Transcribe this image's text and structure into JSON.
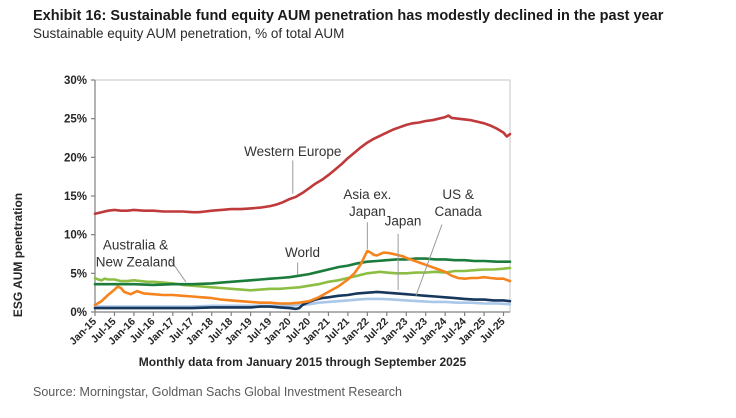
{
  "header": {
    "title": "Exhibit 16: Sustainable fund equity AUM penetration has modestly declined in the past year",
    "subtitle": "Sustainable equity AUM penetration, % of total AUM"
  },
  "source": "Source: Morningstar, Goldman Sachs Global Investment Research",
  "colors": {
    "axis": "#808080",
    "plot_border": "#c6c6c6",
    "tick_text": "#262626",
    "annotation_text": "#333333",
    "leader_line": "#999999"
  },
  "chart_data": {
    "type": "line",
    "title": "Sustainable equity AUM penetration, % of total AUM",
    "ylabel": "ESG AUM penetration",
    "xlabel": "Monthly data from January 2015 through September 2025",
    "ylim": [
      0,
      30
    ],
    "yticks": [
      0,
      5,
      10,
      15,
      20,
      25,
      30
    ],
    "ytick_suffix": "%",
    "xticks": [
      "Jan-15",
      "Jul-15",
      "Jan-16",
      "Jul-16",
      "Jan-17",
      "Jul-17",
      "Jan-18",
      "Jul-18",
      "Jan-19",
      "Jul-19",
      "Jan-20",
      "Jul-20",
      "Jan-21",
      "Jul-21",
      "Jan-22",
      "Jul-22",
      "Jan-23",
      "Jul-23",
      "Jan-24",
      "Jul-24",
      "Jan-25",
      "Jul-25"
    ],
    "x_months_total": 128,
    "grid": false,
    "legend_position": "inline-annotations",
    "series": [
      {
        "name": "US & Canada",
        "color": "#a9c7e8",
        "points": [
          [
            0,
            0.7
          ],
          [
            6,
            0.7
          ],
          [
            12,
            0.7
          ],
          [
            18,
            0.7
          ],
          [
            24,
            0.7
          ],
          [
            30,
            0.7
          ],
          [
            36,
            0.8
          ],
          [
            42,
            0.8
          ],
          [
            48,
            0.8
          ],
          [
            54,
            0.8
          ],
          [
            60,
            0.8
          ],
          [
            63,
            0.9
          ],
          [
            66,
            1.0
          ],
          [
            69,
            1.2
          ],
          [
            72,
            1.3
          ],
          [
            75,
            1.4
          ],
          [
            78,
            1.5
          ],
          [
            81,
            1.6
          ],
          [
            84,
            1.7
          ],
          [
            88,
            1.7
          ],
          [
            92,
            1.6
          ],
          [
            96,
            1.5
          ],
          [
            100,
            1.4
          ],
          [
            104,
            1.3
          ],
          [
            108,
            1.3
          ],
          [
            112,
            1.2
          ],
          [
            116,
            1.2
          ],
          [
            120,
            1.1
          ],
          [
            124,
            1.1
          ],
          [
            128,
            1.0
          ]
        ]
      },
      {
        "name": "Japan",
        "color": "#17375d",
        "points": [
          [
            0,
            0.5
          ],
          [
            6,
            0.5
          ],
          [
            12,
            0.5
          ],
          [
            18,
            0.5
          ],
          [
            24,
            0.5
          ],
          [
            30,
            0.5
          ],
          [
            36,
            0.6
          ],
          [
            42,
            0.6
          ],
          [
            48,
            0.6
          ],
          [
            51,
            0.7
          ],
          [
            54,
            0.7
          ],
          [
            57,
            0.6
          ],
          [
            60,
            0.5
          ],
          [
            62,
            0.4
          ],
          [
            63,
            0.5
          ],
          [
            64,
            0.9
          ],
          [
            66,
            1.3
          ],
          [
            68,
            1.6
          ],
          [
            70,
            1.8
          ],
          [
            72,
            1.9
          ],
          [
            75,
            2.1
          ],
          [
            78,
            2.2
          ],
          [
            81,
            2.4
          ],
          [
            84,
            2.5
          ],
          [
            87,
            2.6
          ],
          [
            90,
            2.5
          ],
          [
            93,
            2.4
          ],
          [
            96,
            2.3
          ],
          [
            99,
            2.2
          ],
          [
            102,
            2.1
          ],
          [
            105,
            2.0
          ],
          [
            108,
            1.9
          ],
          [
            111,
            1.8
          ],
          [
            114,
            1.7
          ],
          [
            117,
            1.6
          ],
          [
            120,
            1.6
          ],
          [
            123,
            1.5
          ],
          [
            126,
            1.5
          ],
          [
            128,
            1.4
          ]
        ]
      },
      {
        "name": "Australia & New Zealand",
        "color": "#8dbe44",
        "points": [
          [
            0,
            4.4
          ],
          [
            1,
            4.2
          ],
          [
            2,
            4.1
          ],
          [
            3,
            4.3
          ],
          [
            4,
            4.2
          ],
          [
            6,
            4.2
          ],
          [
            8,
            4.0
          ],
          [
            10,
            4.0
          ],
          [
            12,
            4.1
          ],
          [
            14,
            4.0
          ],
          [
            16,
            3.9
          ],
          [
            18,
            3.9
          ],
          [
            21,
            3.8
          ],
          [
            24,
            3.7
          ],
          [
            27,
            3.5
          ],
          [
            30,
            3.4
          ],
          [
            33,
            3.3
          ],
          [
            36,
            3.2
          ],
          [
            39,
            3.1
          ],
          [
            42,
            3.0
          ],
          [
            45,
            2.9
          ],
          [
            48,
            2.8
          ],
          [
            51,
            2.9
          ],
          [
            54,
            3.0
          ],
          [
            57,
            3.0
          ],
          [
            60,
            3.1
          ],
          [
            63,
            3.2
          ],
          [
            66,
            3.4
          ],
          [
            69,
            3.6
          ],
          [
            72,
            3.9
          ],
          [
            75,
            4.1
          ],
          [
            78,
            4.4
          ],
          [
            81,
            4.7
          ],
          [
            84,
            5.0
          ],
          [
            86,
            5.1
          ],
          [
            88,
            5.2
          ],
          [
            90,
            5.1
          ],
          [
            93,
            5.0
          ],
          [
            96,
            5.0
          ],
          [
            99,
            5.1
          ],
          [
            102,
            5.1
          ],
          [
            105,
            5.2
          ],
          [
            108,
            5.1
          ],
          [
            111,
            5.3
          ],
          [
            114,
            5.3
          ],
          [
            117,
            5.4
          ],
          [
            120,
            5.5
          ],
          [
            123,
            5.5
          ],
          [
            126,
            5.6
          ],
          [
            128,
            5.7
          ]
        ]
      },
      {
        "name": "World",
        "color": "#1c7c3c",
        "points": [
          [
            0,
            3.6
          ],
          [
            6,
            3.6
          ],
          [
            12,
            3.6
          ],
          [
            18,
            3.5
          ],
          [
            24,
            3.6
          ],
          [
            30,
            3.6
          ],
          [
            36,
            3.7
          ],
          [
            39,
            3.8
          ],
          [
            42,
            3.9
          ],
          [
            45,
            4.0
          ],
          [
            48,
            4.1
          ],
          [
            51,
            4.2
          ],
          [
            54,
            4.3
          ],
          [
            57,
            4.4
          ],
          [
            60,
            4.5
          ],
          [
            63,
            4.7
          ],
          [
            66,
            4.9
          ],
          [
            69,
            5.2
          ],
          [
            72,
            5.5
          ],
          [
            75,
            5.8
          ],
          [
            78,
            6.0
          ],
          [
            81,
            6.3
          ],
          [
            84,
            6.5
          ],
          [
            87,
            6.6
          ],
          [
            90,
            6.7
          ],
          [
            93,
            6.8
          ],
          [
            96,
            6.8
          ],
          [
            99,
            6.9
          ],
          [
            102,
            6.9
          ],
          [
            105,
            6.8
          ],
          [
            108,
            6.8
          ],
          [
            111,
            6.7
          ],
          [
            114,
            6.7
          ],
          [
            117,
            6.6
          ],
          [
            120,
            6.6
          ],
          [
            124,
            6.5
          ],
          [
            128,
            6.5
          ]
        ]
      },
      {
        "name": "Asia ex. Japan",
        "color": "#f5841f",
        "points": [
          [
            0,
            0.9
          ],
          [
            2,
            1.4
          ],
          [
            4,
            2.2
          ],
          [
            6,
            2.9
          ],
          [
            7,
            3.3
          ],
          [
            8,
            3.1
          ],
          [
            9,
            2.6
          ],
          [
            11,
            2.3
          ],
          [
            13,
            2.7
          ],
          [
            15,
            2.4
          ],
          [
            18,
            2.3
          ],
          [
            21,
            2.2
          ],
          [
            24,
            2.2
          ],
          [
            27,
            2.1
          ],
          [
            30,
            2.0
          ],
          [
            33,
            1.9
          ],
          [
            36,
            1.8
          ],
          [
            39,
            1.6
          ],
          [
            42,
            1.5
          ],
          [
            45,
            1.4
          ],
          [
            48,
            1.3
          ],
          [
            51,
            1.2
          ],
          [
            54,
            1.2
          ],
          [
            57,
            1.1
          ],
          [
            60,
            1.1
          ],
          [
            63,
            1.2
          ],
          [
            66,
            1.4
          ],
          [
            69,
            1.9
          ],
          [
            72,
            2.6
          ],
          [
            75,
            3.3
          ],
          [
            78,
            4.2
          ],
          [
            80,
            5.0
          ],
          [
            82,
            6.2
          ],
          [
            84,
            7.9
          ],
          [
            85,
            7.7
          ],
          [
            86,
            7.4
          ],
          [
            87,
            7.3
          ],
          [
            89,
            7.7
          ],
          [
            91,
            7.6
          ],
          [
            93,
            7.4
          ],
          [
            95,
            7.2
          ],
          [
            96,
            7.0
          ],
          [
            98,
            6.7
          ],
          [
            100,
            6.4
          ],
          [
            102,
            6.1
          ],
          [
            104,
            5.8
          ],
          [
            106,
            5.5
          ],
          [
            108,
            5.2
          ],
          [
            110,
            4.7
          ],
          [
            112,
            4.4
          ],
          [
            114,
            4.3
          ],
          [
            116,
            4.4
          ],
          [
            118,
            4.4
          ],
          [
            120,
            4.5
          ],
          [
            122,
            4.4
          ],
          [
            124,
            4.3
          ],
          [
            126,
            4.3
          ],
          [
            128,
            4.0
          ]
        ]
      },
      {
        "name": "Western Europe",
        "color": "#c0393b",
        "points": [
          [
            0,
            12.7
          ],
          [
            2,
            12.9
          ],
          [
            4,
            13.1
          ],
          [
            6,
            13.2
          ],
          [
            8,
            13.1
          ],
          [
            10,
            13.1
          ],
          [
            12,
            13.2
          ],
          [
            15,
            13.1
          ],
          [
            18,
            13.1
          ],
          [
            21,
            13.0
          ],
          [
            24,
            13.0
          ],
          [
            27,
            13.0
          ],
          [
            30,
            12.9
          ],
          [
            32,
            12.9
          ],
          [
            34,
            13.0
          ],
          [
            36,
            13.1
          ],
          [
            39,
            13.2
          ],
          [
            42,
            13.3
          ],
          [
            45,
            13.3
          ],
          [
            48,
            13.4
          ],
          [
            51,
            13.5
          ],
          [
            54,
            13.7
          ],
          [
            56,
            13.9
          ],
          [
            58,
            14.2
          ],
          [
            60,
            14.6
          ],
          [
            62,
            14.9
          ],
          [
            64,
            15.4
          ],
          [
            66,
            16.0
          ],
          [
            68,
            16.6
          ],
          [
            70,
            17.1
          ],
          [
            72,
            17.7
          ],
          [
            74,
            18.4
          ],
          [
            76,
            19.1
          ],
          [
            78,
            19.9
          ],
          [
            80,
            20.6
          ],
          [
            82,
            21.3
          ],
          [
            84,
            21.9
          ],
          [
            86,
            22.4
          ],
          [
            88,
            22.8
          ],
          [
            90,
            23.2
          ],
          [
            92,
            23.6
          ],
          [
            94,
            23.9
          ],
          [
            96,
            24.2
          ],
          [
            98,
            24.4
          ],
          [
            100,
            24.5
          ],
          [
            102,
            24.7
          ],
          [
            104,
            24.8
          ],
          [
            106,
            25.0
          ],
          [
            108,
            25.2
          ],
          [
            109,
            25.4
          ],
          [
            110,
            25.1
          ],
          [
            112,
            25.0
          ],
          [
            114,
            24.9
          ],
          [
            116,
            24.8
          ],
          [
            118,
            24.6
          ],
          [
            120,
            24.4
          ],
          [
            122,
            24.1
          ],
          [
            124,
            23.7
          ],
          [
            126,
            23.2
          ],
          [
            127,
            22.7
          ],
          [
            128,
            23.0
          ]
        ]
      }
    ],
    "annotations": [
      {
        "id": "western-europe",
        "lines": [
          "Western Europe"
        ],
        "x": 61,
        "y": 20.7,
        "leader": [
          [
            61,
            19.6
          ],
          [
            61,
            15.3
          ]
        ]
      },
      {
        "id": "australia-new-zealand",
        "lines": [
          "Australia &",
          "New Zealand"
        ],
        "x": 12.5,
        "y": 8.6,
        "leader": [
          [
            23,
            6.9
          ],
          [
            28,
            3.9
          ]
        ]
      },
      {
        "id": "world",
        "lines": [
          "World"
        ],
        "x": 64,
        "y": 7.6,
        "leader": [
          [
            62.5,
            6.4
          ],
          [
            62.5,
            4.85
          ]
        ]
      },
      {
        "id": "asia-ex-japan",
        "lines": [
          "Asia ex.",
          "Japan"
        ],
        "x": 84,
        "y": 15.1,
        "leader": [
          [
            84,
            11.6
          ],
          [
            84,
            8.15
          ]
        ]
      },
      {
        "id": "japan",
        "lines": [
          "Japan"
        ],
        "x": 95,
        "y": 11.7,
        "leader": [
          [
            93.5,
            10.1
          ],
          [
            93.5,
            2.85
          ]
        ]
      },
      {
        "id": "us-canada",
        "lines": [
          "US &",
          "Canada"
        ],
        "x": 112,
        "y": 15.1,
        "leader": [
          [
            107,
            11.3
          ],
          [
            99,
            2.1
          ]
        ]
      }
    ]
  }
}
